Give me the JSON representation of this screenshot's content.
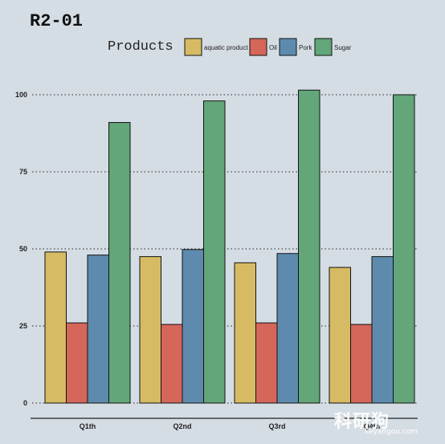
{
  "chart_data": {
    "type": "bar",
    "title": "R2-01",
    "legend_title": "Products",
    "legend_position": "top",
    "categories": [
      "Q1th",
      "Q2nd",
      "Q3rd",
      "Q4th"
    ],
    "series": [
      {
        "name": "aquatic product",
        "color": "#d6bb64",
        "values": [
          49,
          47.5,
          45.5,
          44
        ]
      },
      {
        "name": "Oil",
        "color": "#d4665a",
        "values": [
          26,
          25.5,
          26,
          25.5
        ]
      },
      {
        "name": "Pork",
        "color": "#5e8bad",
        "values": [
          48,
          49.8,
          48.5,
          47.5
        ]
      },
      {
        "name": "Sugar",
        "color": "#62a679",
        "values": [
          91,
          98,
          101.5,
          100
        ]
      }
    ],
    "yticks": [
      0,
      25,
      50,
      75,
      100
    ],
    "ylim": [
      0,
      103
    ],
    "grid": "horizontal dotted",
    "xlabel": "",
    "ylabel": ""
  },
  "watermark": {
    "logo_text": "科研狗",
    "url_text": "keyangou.com"
  }
}
